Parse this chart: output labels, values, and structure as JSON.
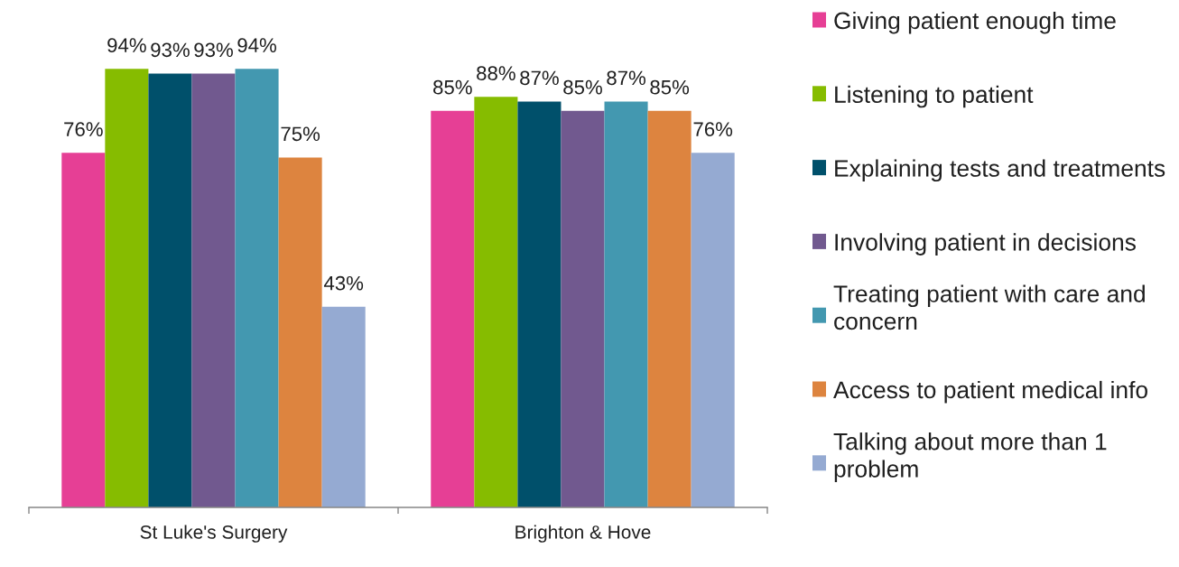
{
  "chart_data": {
    "type": "bar",
    "categories": [
      "St Luke's Surgery",
      "Brighton & Hove"
    ],
    "series": [
      {
        "name": "Giving patient enough time",
        "color": "#e63f95",
        "values": [
          76,
          85
        ],
        "value_labels": [
          "76%",
          "85%"
        ]
      },
      {
        "name": "Listening to patient",
        "color": "#86bc00",
        "values": [
          94,
          88
        ],
        "value_labels": [
          "94%",
          "88%"
        ]
      },
      {
        "name": "Explaining tests and treatments",
        "color": "#00506b",
        "values": [
          93,
          87
        ],
        "value_labels": [
          "93%",
          "87%"
        ]
      },
      {
        "name": "Involving patient in decisions",
        "color": "#71598f",
        "values": [
          93,
          85
        ],
        "value_labels": [
          "93%",
          "85%"
        ]
      },
      {
        "name": "Treating patient with care and concern",
        "color": "#4398b0",
        "values": [
          94,
          87
        ],
        "value_labels": [
          "94%",
          "87%"
        ]
      },
      {
        "name": "Access to patient medical info",
        "color": "#dd843f",
        "values": [
          75,
          85
        ],
        "value_labels": [
          "75%",
          "85%"
        ]
      },
      {
        "name": "Talking about more than 1 problem",
        "color": "#95aad2",
        "values": [
          43,
          76
        ],
        "value_labels": [
          "43%",
          "76%"
        ]
      }
    ],
    "tick_labels": "x",
    "legend": "right"
  }
}
